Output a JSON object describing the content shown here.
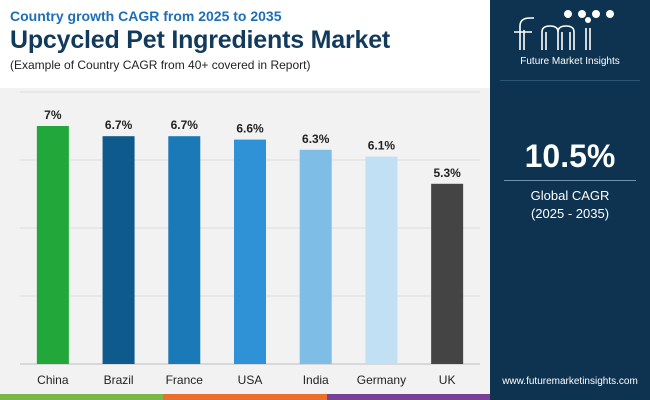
{
  "header": {
    "subtitle": "Country growth CAGR from 2025 to 2035",
    "title": "Upcycled Pet Ingredients Market",
    "note": "(Example of Country CAGR from 40+ covered in Report)"
  },
  "sidebar": {
    "brand": "Future Market Insights",
    "cagr_value": "10.5%",
    "cagr_label": "Global CAGR",
    "cagr_period": "(2025 - 2035)",
    "website": "www.futuremarketinsights.com"
  },
  "colors": {
    "sidebar_bg": "#0d3350",
    "title": "#123a5c",
    "accent_blue": "#1d6fb5",
    "strip": [
      "#7ab648",
      "#e8702a",
      "#7b3f98",
      "#0d3350"
    ]
  },
  "chart_data": {
    "type": "bar",
    "title": "Upcycled Pet Ingredients Market",
    "xlabel": "",
    "ylabel": "",
    "categories": [
      "China",
      "Brazil",
      "France",
      "USA",
      "India",
      "Germany",
      "UK"
    ],
    "values": [
      7.0,
      6.7,
      6.7,
      6.6,
      6.3,
      6.1,
      5.3
    ],
    "data_labels": [
      "7%",
      "6.7%",
      "6.7%",
      "6.6%",
      "6.3%",
      "6.1%",
      "5.3%"
    ],
    "colors": [
      "#22a83a",
      "#0e5a8c",
      "#1a7ab8",
      "#2f92d6",
      "#7ebde6",
      "#c2e0f3",
      "#444444"
    ],
    "ylim": [
      0,
      7
    ],
    "grid": true,
    "legend": "none"
  }
}
